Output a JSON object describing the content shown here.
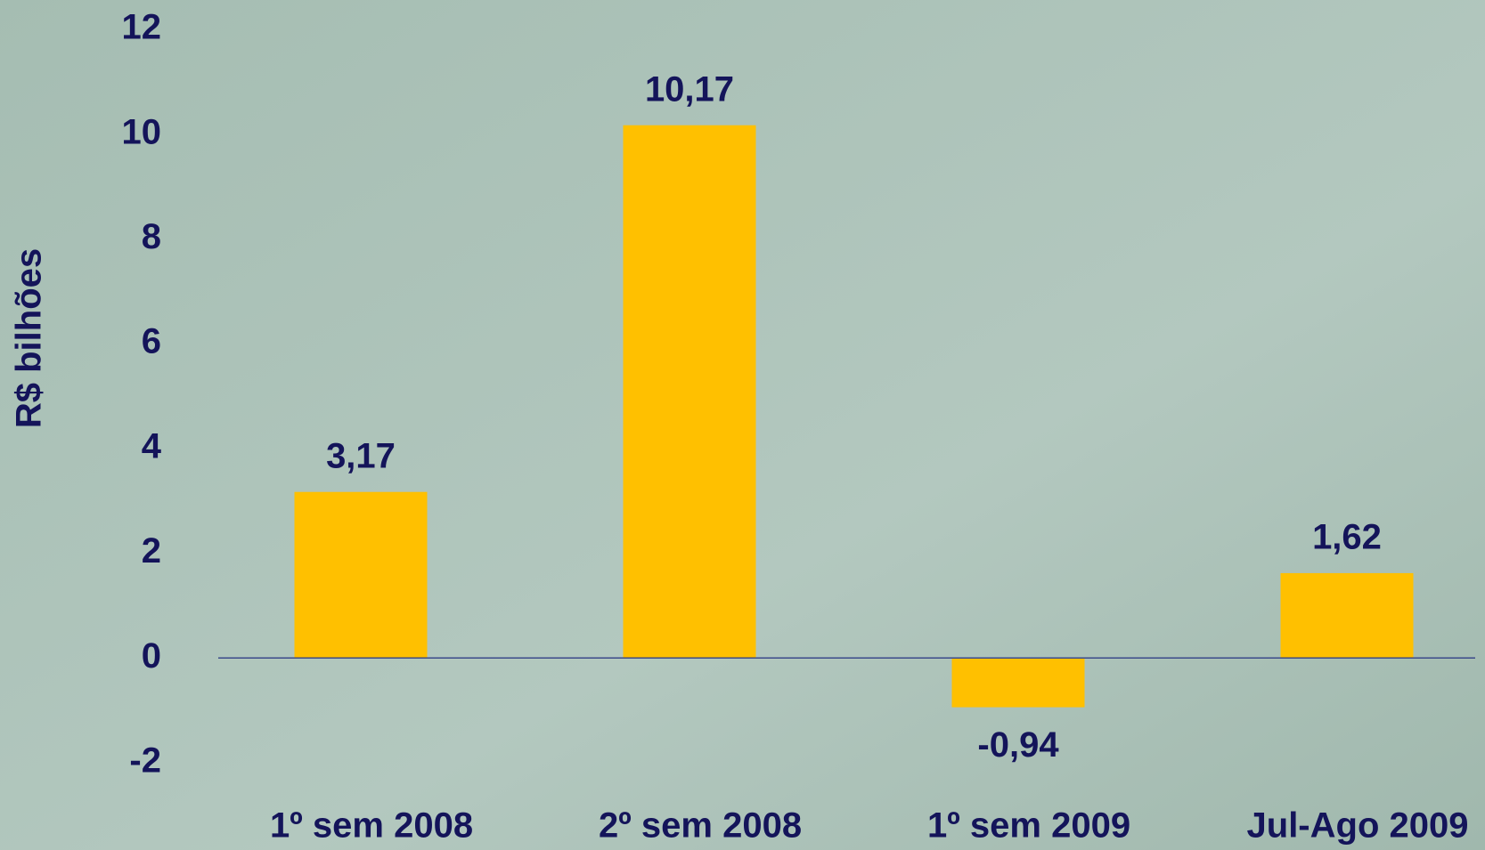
{
  "chart_data": {
    "type": "bar",
    "y_label": "R$ bilhões",
    "categories": [
      "1º sem 2008",
      "2º sem 2008",
      "1º sem 2009",
      "Jul-Ago 2009"
    ],
    "values": [
      3.17,
      10.17,
      -0.94,
      1.62
    ],
    "value_labels": [
      "3,17",
      "10,17",
      "-0,94",
      "1,62"
    ],
    "color": "#ffc000",
    "ylim": [
      -2,
      12
    ],
    "yticks": [
      -2,
      0,
      2,
      4,
      6,
      8,
      10,
      12
    ],
    "grid": false
  }
}
